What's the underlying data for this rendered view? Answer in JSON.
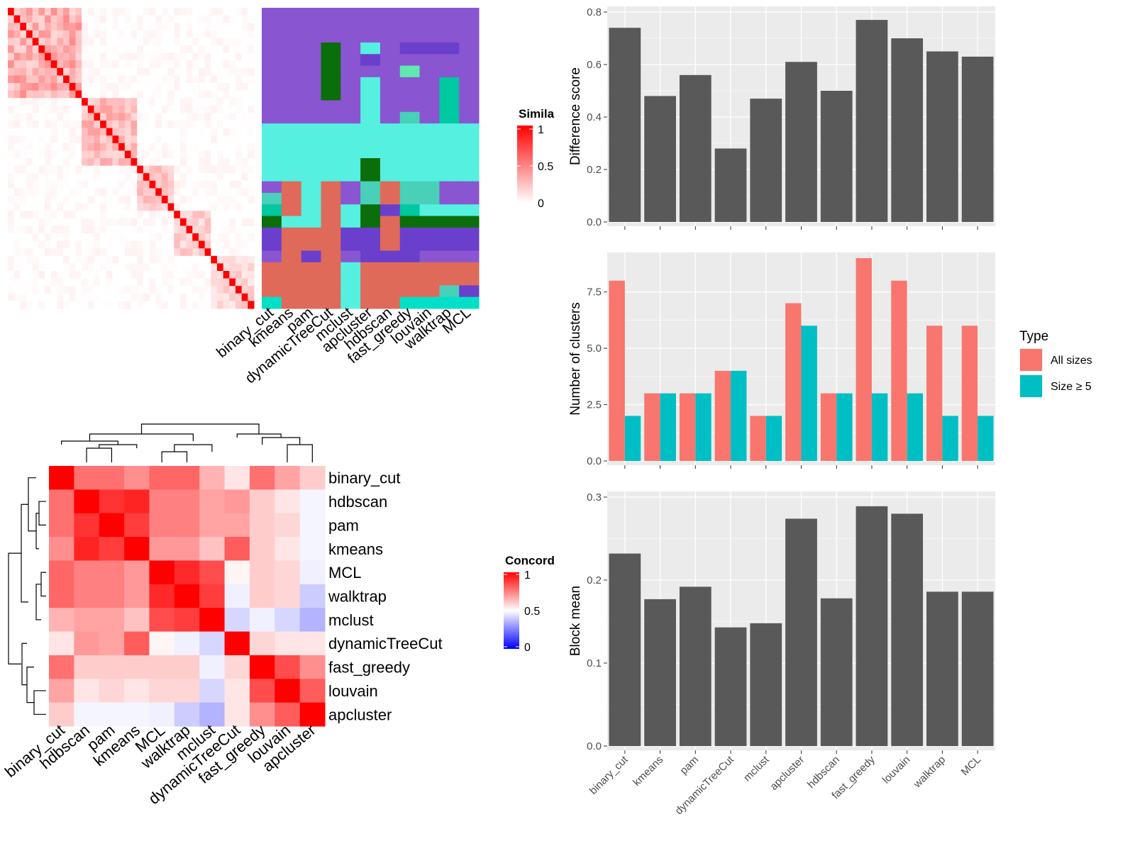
{
  "palette": {
    "panel_bg": "#ebebeb",
    "grid": "#ffffff",
    "bar": "#595959",
    "all_sizes": "#f8766d",
    "size_ge_5": "#00bfc4",
    "sim_high": "#ff0000",
    "sim_low": "#ffffff",
    "conc_high": "#ff0000",
    "conc_mid": "#ffffff",
    "conc_low": "#0000ff",
    "cluster_colors": [
      "#8a55d0",
      "#55f0e0",
      "#e06a5a",
      "#0a6e0a",
      "#00c8a0",
      "#6a3fcc",
      "#48d0b8",
      "#60e8b0",
      "#00e0c8"
    ]
  },
  "heatmap_similarity": {
    "legend_title": "Simila",
    "legend_ticks": [
      "1",
      "0.5",
      "0"
    ],
    "n": 40,
    "blocks": [
      [
        0,
        12,
        0.38
      ],
      [
        12,
        21,
        0.32
      ],
      [
        21,
        27,
        0.25
      ],
      [
        27,
        33,
        0.22
      ],
      [
        33,
        40,
        0.2
      ]
    ]
  },
  "cluster_panel": {
    "columns": [
      "binary_cut",
      "kmeans",
      "pam",
      "dynamicTreeCut",
      "mclust",
      "apcluster",
      "hdbscan",
      "fast_greedy",
      "louvain",
      "walktrap",
      "MCL"
    ],
    "rows": [
      [
        0,
        0,
        0,
        0,
        0,
        0,
        0,
        0,
        0,
        0,
        0
      ],
      [
        0,
        0,
        0,
        0,
        0,
        0,
        0,
        0,
        0,
        0,
        0
      ],
      [
        0,
        0,
        0,
        0,
        0,
        0,
        0,
        0,
        0,
        0,
        0
      ],
      [
        0,
        0,
        0,
        3,
        0,
        1,
        0,
        5,
        5,
        5,
        0
      ],
      [
        0,
        0,
        0,
        3,
        0,
        5,
        0,
        0,
        0,
        0,
        0
      ],
      [
        0,
        0,
        0,
        3,
        0,
        0,
        0,
        7,
        0,
        0,
        0
      ],
      [
        0,
        0,
        0,
        3,
        0,
        1,
        0,
        0,
        0,
        4,
        0
      ],
      [
        0,
        0,
        0,
        3,
        0,
        1,
        0,
        0,
        0,
        4,
        0
      ],
      [
        0,
        0,
        0,
        0,
        0,
        1,
        0,
        0,
        0,
        4,
        0
      ],
      [
        0,
        0,
        0,
        0,
        0,
        1,
        0,
        6,
        0,
        4,
        0
      ],
      [
        1,
        1,
        1,
        1,
        1,
        1,
        1,
        1,
        1,
        1,
        1
      ],
      [
        1,
        1,
        1,
        1,
        1,
        1,
        1,
        1,
        1,
        1,
        1
      ],
      [
        1,
        1,
        1,
        1,
        1,
        1,
        1,
        1,
        1,
        1,
        1
      ],
      [
        1,
        1,
        1,
        1,
        1,
        3,
        1,
        1,
        1,
        1,
        1
      ],
      [
        1,
        1,
        1,
        1,
        1,
        3,
        1,
        1,
        1,
        1,
        1
      ],
      [
        0,
        2,
        1,
        2,
        0,
        6,
        2,
        6,
        6,
        0,
        0
      ],
      [
        6,
        2,
        1,
        2,
        0,
        6,
        2,
        6,
        6,
        0,
        0
      ],
      [
        4,
        2,
        1,
        2,
        1,
        3,
        5,
        4,
        1,
        1,
        1
      ],
      [
        3,
        1,
        1,
        2,
        1,
        3,
        2,
        3,
        3,
        3,
        3
      ],
      [
        5,
        2,
        2,
        2,
        5,
        5,
        2,
        5,
        5,
        5,
        5
      ],
      [
        5,
        2,
        2,
        2,
        5,
        5,
        2,
        5,
        5,
        5,
        5
      ],
      [
        0,
        2,
        5,
        2,
        0,
        5,
        5,
        5,
        0,
        0,
        0
      ],
      [
        2,
        2,
        2,
        2,
        1,
        2,
        2,
        2,
        2,
        2,
        2
      ],
      [
        2,
        2,
        2,
        2,
        1,
        2,
        2,
        2,
        2,
        2,
        2
      ],
      [
        2,
        2,
        2,
        2,
        1,
        2,
        2,
        2,
        2,
        6,
        5
      ],
      [
        8,
        2,
        2,
        2,
        1,
        2,
        2,
        8,
        8,
        8,
        8
      ]
    ]
  },
  "concordance": {
    "legend_title": "Concord",
    "legend_ticks": [
      "1",
      "0.5",
      "0"
    ],
    "labels": [
      "binary_cut",
      "hdbscan",
      "pam",
      "kmeans",
      "MCL",
      "walktrap",
      "mclust",
      "dynamicTreeCut",
      "fast_greedy",
      "louvain",
      "apcluster"
    ],
    "matrix": [
      [
        1.0,
        0.78,
        0.78,
        0.72,
        0.8,
        0.8,
        0.65,
        0.55,
        0.78,
        0.68,
        0.6
      ],
      [
        0.78,
        1.0,
        0.9,
        0.93,
        0.75,
        0.75,
        0.68,
        0.7,
        0.6,
        0.55,
        0.48
      ],
      [
        0.78,
        0.9,
        1.0,
        0.88,
        0.75,
        0.75,
        0.68,
        0.68,
        0.6,
        0.58,
        0.48
      ],
      [
        0.72,
        0.93,
        0.88,
        1.0,
        0.7,
        0.7,
        0.62,
        0.82,
        0.6,
        0.55,
        0.48
      ],
      [
        0.8,
        0.75,
        0.75,
        0.7,
        1.0,
        0.92,
        0.85,
        0.52,
        0.6,
        0.58,
        0.47
      ],
      [
        0.8,
        0.75,
        0.75,
        0.7,
        0.92,
        1.0,
        0.88,
        0.47,
        0.6,
        0.58,
        0.4
      ],
      [
        0.65,
        0.68,
        0.68,
        0.62,
        0.85,
        0.88,
        1.0,
        0.42,
        0.47,
        0.42,
        0.35
      ],
      [
        0.55,
        0.7,
        0.68,
        0.82,
        0.52,
        0.47,
        0.42,
        1.0,
        0.58,
        0.55,
        0.55
      ],
      [
        0.78,
        0.6,
        0.6,
        0.6,
        0.6,
        0.6,
        0.47,
        0.58,
        1.0,
        0.85,
        0.72
      ],
      [
        0.68,
        0.55,
        0.58,
        0.55,
        0.58,
        0.58,
        0.42,
        0.55,
        0.85,
        1.0,
        0.82
      ],
      [
        0.6,
        0.48,
        0.48,
        0.48,
        0.47,
        0.4,
        0.35,
        0.55,
        0.72,
        0.82,
        1.0
      ]
    ]
  },
  "chart_data": [
    {
      "type": "bar",
      "categories": [
        "binary_cut",
        "kmeans",
        "pam",
        "dynamicTreeCut",
        "mclust",
        "apcluster",
        "hdbscan",
        "fast_greedy",
        "louvain",
        "walktrap",
        "MCL"
      ],
      "values": [
        0.74,
        0.48,
        0.56,
        0.28,
        0.47,
        0.61,
        0.5,
        0.77,
        0.7,
        0.65,
        0.63
      ],
      "ylabel": "Difference score",
      "ylim": [
        0,
        0.8
      ],
      "yticks": [
        "0.0",
        "0.2",
        "0.4",
        "0.6",
        "0.8"
      ],
      "grid": true
    },
    {
      "type": "bar",
      "categories": [
        "binary_cut",
        "kmeans",
        "pam",
        "dynamicTreeCut",
        "mclust",
        "apcluster",
        "hdbscan",
        "fast_greedy",
        "louvain",
        "walktrap",
        "MCL"
      ],
      "series": [
        {
          "name": "All sizes",
          "values": [
            8,
            3,
            3,
            4,
            2,
            7,
            3,
            9,
            8,
            6,
            6
          ]
        },
        {
          "name": "Size ≥ 5",
          "values": [
            2,
            3,
            3,
            4,
            2,
            6,
            3,
            3,
            3,
            2,
            2
          ]
        }
      ],
      "ylabel": "Number of clusters",
      "ylim": [
        0,
        9
      ],
      "yticks": [
        "0.0",
        "2.5",
        "5.0",
        "7.5"
      ],
      "legend_title": "Type",
      "legend_position": "right",
      "grid": true
    },
    {
      "type": "bar",
      "categories": [
        "binary_cut",
        "kmeans",
        "pam",
        "dynamicTreeCut",
        "mclust",
        "apcluster",
        "hdbscan",
        "fast_greedy",
        "louvain",
        "walktrap",
        "MCL"
      ],
      "values": [
        0.232,
        0.177,
        0.192,
        0.143,
        0.148,
        0.274,
        0.178,
        0.289,
        0.28,
        0.186,
        0.186
      ],
      "ylabel": "Block mean",
      "ylim": [
        0,
        0.3
      ],
      "yticks": [
        "0.0",
        "0.1",
        "0.2",
        "0.3"
      ],
      "grid": true
    }
  ]
}
